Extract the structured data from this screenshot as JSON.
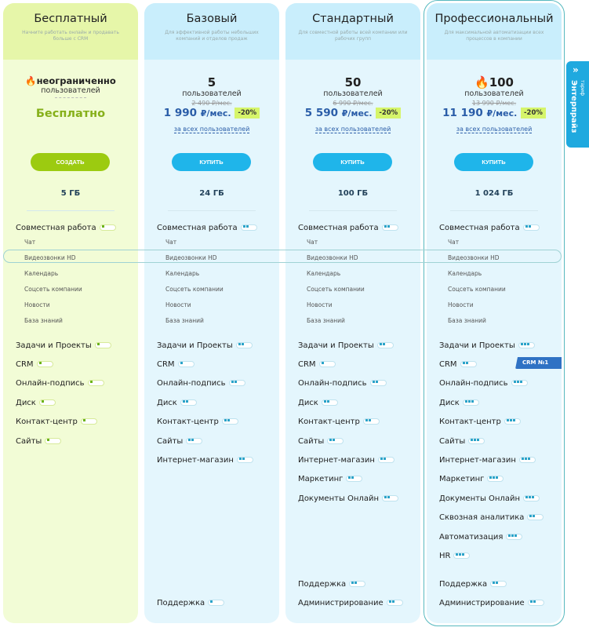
{
  "plans": [
    {
      "id": "free",
      "title": "Бесплатный",
      "subtitle": "Начните работать онлайн и продавать больше с CRM",
      "users": "неограниченно",
      "users_label": "пользователей",
      "price": "Бесплатно",
      "button": "СОЗДАТЬ",
      "storage": "5 ГБ",
      "fire": true
    },
    {
      "id": "basic",
      "title": "Базовый",
      "subtitle": "Для эффективной работы небольших компаний и отделов продаж",
      "users": "5",
      "users_label": "пользователей",
      "old_price": "2 490 ₽/мес.",
      "price": "1 990",
      "currency": "₽/мес.",
      "discount": "-20%",
      "per": "за всех пользователей",
      "button": "КУПИТЬ",
      "storage": "24 ГБ"
    },
    {
      "id": "standard",
      "title": "Стандартный",
      "subtitle": "Для совместной работы всей компании или рабочих групп",
      "users": "50",
      "users_label": "пользователей",
      "old_price": "6 990 ₽/мес.",
      "price": "5 590",
      "currency": "₽/мес.",
      "discount": "-20%",
      "per": "за всех пользователей",
      "button": "КУПИТЬ",
      "storage": "100 ГБ"
    },
    {
      "id": "pro",
      "title": "Профессиональный",
      "subtitle": "Для максимальной автоматизации всех процессов в компании",
      "users": "100",
      "users_label": "пользователей",
      "old_price": "13 990 ₽/мес.",
      "price": "11 190",
      "currency": "₽/мес.",
      "discount": "-20%",
      "per": "за всех пользователей",
      "button": "КУПИТЬ",
      "storage": "1 024 ГБ",
      "fire": true
    }
  ],
  "collab_subitems": [
    "Чат",
    "Видеозвонки HD",
    "Календарь",
    "Соцсеть компании",
    "Новости",
    "База знаний"
  ],
  "features": {
    "free": [
      [
        "Совместная работа",
        1
      ],
      [
        "Задачи и Проекты",
        1
      ],
      [
        "CRM",
        1
      ],
      [
        "Онлайн-подпись",
        1
      ],
      [
        "Диск",
        1
      ],
      [
        "Контакт-центр",
        1
      ],
      [
        "Сайты",
        1
      ]
    ],
    "basic": [
      [
        "Совместная работа",
        2
      ],
      [
        "Задачи и Проекты",
        2
      ],
      [
        "CRM",
        1
      ],
      [
        "Онлайн-подпись",
        2
      ],
      [
        "Диск",
        2
      ],
      [
        "Контакт-центр",
        2
      ],
      [
        "Сайты",
        2
      ],
      [
        "Интернет-магазин",
        2
      ],
      [
        "Поддержка",
        1
      ]
    ],
    "standard": [
      [
        "Совместная работа",
        2
      ],
      [
        "Задачи и Проекты",
        2
      ],
      [
        "CRM",
        1
      ],
      [
        "Онлайн-подпись",
        2
      ],
      [
        "Диск",
        2
      ],
      [
        "Контакт-центр",
        2
      ],
      [
        "Сайты",
        2
      ],
      [
        "Интернет-магазин",
        2
      ],
      [
        "Маркетинг",
        2
      ],
      [
        "Документы Онлайн",
        2
      ],
      [
        "Поддержка",
        2
      ],
      [
        "Администрирование",
        2
      ]
    ],
    "pro": [
      [
        "Совместная работа",
        2
      ],
      [
        "Задачи и Проекты",
        3
      ],
      [
        "CRM",
        2
      ],
      [
        "Онлайн-подпись",
        3
      ],
      [
        "Диск",
        3
      ],
      [
        "Контакт-центр",
        3
      ],
      [
        "Сайты",
        3
      ],
      [
        "Интернет-магазин",
        3
      ],
      [
        "Маркетинг",
        3
      ],
      [
        "Документы Онлайн",
        3
      ],
      [
        "Сквозная аналитика",
        2
      ],
      [
        "Автоматизация",
        3
      ],
      [
        "HR",
        3
      ],
      [
        "Поддержка",
        2
      ],
      [
        "Администрирование",
        2
      ]
    ]
  },
  "crm_badge": "CRM №1",
  "enterprise": {
    "small": "тариф",
    "label": "Энтерпрайз",
    "icon": "double-chevron-icon"
  },
  "colors": {
    "free_accent": "#9ccb10",
    "paid_accent": "#1fb5ea",
    "price": "#2a5da8",
    "discount_bg": "#d6f56a",
    "enterprise": "#1fa9df"
  }
}
